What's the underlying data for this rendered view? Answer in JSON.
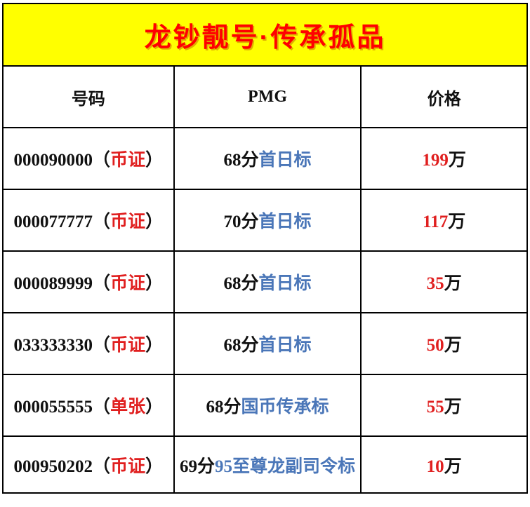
{
  "banner": {
    "title": "龙钞靓号·传承孤品"
  },
  "table": {
    "headers": {
      "number": "号码",
      "pmg": "PMG",
      "price": "价格"
    },
    "labels": {
      "paren_open": "（",
      "paren_close": "）",
      "price_unit": "万"
    },
    "rows": [
      {
        "number": "000090000",
        "tag": "币证",
        "grade": "68分",
        "pmg_label": "首日标",
        "price": "199"
      },
      {
        "number": "000077777",
        "tag": "币证",
        "grade": "70分",
        "pmg_label": "首日标",
        "price": "117"
      },
      {
        "number": "000089999",
        "tag": "币证",
        "grade": "68分",
        "pmg_label": "首日标",
        "price": "35"
      },
      {
        "number": "033333330",
        "tag": "币证",
        "grade": "68分",
        "pmg_label": "首日标",
        "price": "50"
      },
      {
        "number": "000055555",
        "tag": "单张",
        "grade": "68分",
        "pmg_label": "国币传承标",
        "price": "55"
      },
      {
        "number": "000950202",
        "tag": "币证",
        "grade": "69分",
        "pmg_label": "95至尊龙副司令标",
        "price": "10"
      }
    ]
  },
  "chart_data": {
    "type": "table",
    "title": "龙钞靓号·传承孤品",
    "columns": [
      "号码",
      "PMG",
      "价格"
    ],
    "rows": [
      [
        "000090000（币证）",
        "68分首日标",
        "199万"
      ],
      [
        "000077777（币证）",
        "70分首日标",
        "117万"
      ],
      [
        "000089999（币证）",
        "68分首日标",
        "35万"
      ],
      [
        "033333330（币证）",
        "68分首日标",
        "50万"
      ],
      [
        "000055555（单张）",
        "68分国币传承标",
        "55万"
      ],
      [
        "000950202（币证）",
        "69分95至尊龙副司令标",
        "10万"
      ]
    ],
    "layout": {
      "grid": true,
      "header_row": true,
      "banner_above_table": true
    }
  },
  "colors": {
    "banner_bg": "#ffff00",
    "title_red": "#ff0000",
    "tag_red": "#e01f1f",
    "price_red": "#e01f1f",
    "link_blue": "#4a76b8",
    "border_black": "#000000",
    "text_black": "#111111"
  }
}
